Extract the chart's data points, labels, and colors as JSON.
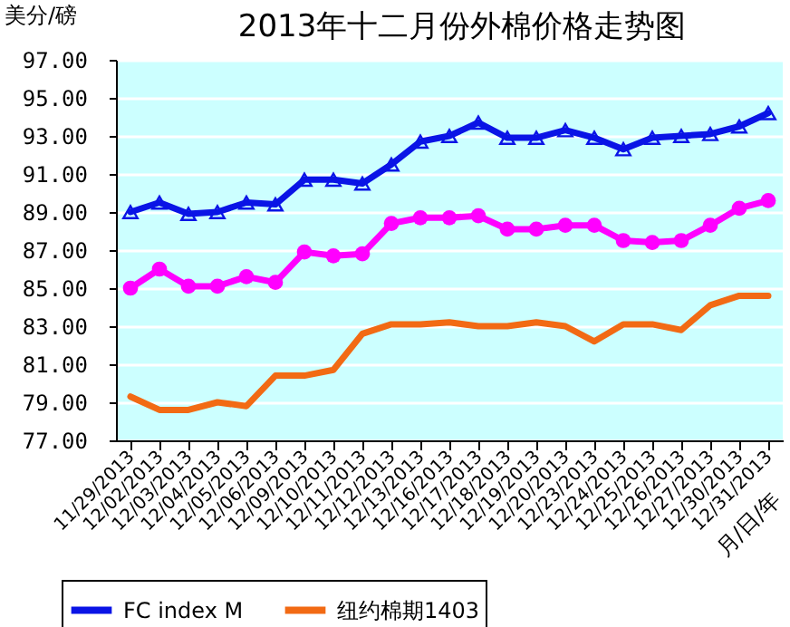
{
  "chart_data": {
    "type": "line",
    "title": "2013年十二月份外棉价格走势图",
    "ylabel": "美分/磅",
    "xlabel": "月/日/年",
    "categories": [
      "11/29/2013",
      "12/02/2013",
      "12/03/2013",
      "12/04/2013",
      "12/05/2013",
      "12/06/2013",
      "12/09/2013",
      "12/10/2013",
      "12/11/2013",
      "12/12/2013",
      "12/13/2013",
      "12/16/2013",
      "12/17/2013",
      "12/18/2013",
      "12/19/2013",
      "12/20/2013",
      "12/23/2013",
      "12/24/2013",
      "12/25/2013",
      "12/26/2013",
      "12/27/2013",
      "12/30/2013",
      "12/31/2013"
    ],
    "series": [
      {
        "name": "FC index M",
        "color": "#0a14e6",
        "marker": "triangle",
        "values": [
          89.0,
          89.5,
          88.9,
          89.0,
          89.5,
          89.4,
          90.7,
          90.7,
          90.5,
          91.5,
          92.7,
          93.0,
          93.7,
          92.9,
          92.9,
          93.3,
          92.9,
          92.3,
          92.9,
          93.0,
          93.1,
          93.5,
          94.2
        ]
      },
      {
        "color": "#ff00ff",
        "marker": "circle",
        "values": [
          85.0,
          86.0,
          85.1,
          85.1,
          85.6,
          85.3,
          86.9,
          86.7,
          86.8,
          88.4,
          88.7,
          88.7,
          88.8,
          88.1,
          88.1,
          88.3,
          88.3,
          87.5,
          87.4,
          87.5,
          88.3,
          89.2,
          89.6
        ]
      },
      {
        "name": "纽约棉期1403",
        "color": "#f26a14",
        "marker": "none",
        "values": [
          79.3,
          78.6,
          78.6,
          79.0,
          78.8,
          80.4,
          80.4,
          80.7,
          82.6,
          83.1,
          83.1,
          83.2,
          83.0,
          83.0,
          83.2,
          83.0,
          82.2,
          83.1,
          83.1,
          82.8,
          84.1,
          84.6,
          84.6
        ]
      }
    ],
    "ylim": [
      77,
      97
    ],
    "yticks": [
      {
        "value": 77,
        "label": "77.00"
      },
      {
        "value": 79,
        "label": "79.00"
      },
      {
        "value": 81,
        "label": "81.00"
      },
      {
        "value": 83,
        "label": "83.00"
      },
      {
        "value": 85,
        "label": "85.00"
      },
      {
        "value": 87,
        "label": "87.00"
      },
      {
        "value": 89,
        "label": "89.00"
      },
      {
        "value": 91,
        "label": "91.00"
      },
      {
        "value": 93,
        "label": "93.00"
      },
      {
        "value": 95,
        "label": "95.00"
      },
      {
        "value": 97,
        "label": "97.00"
      }
    ],
    "grid": "y",
    "legend": "bottom"
  }
}
